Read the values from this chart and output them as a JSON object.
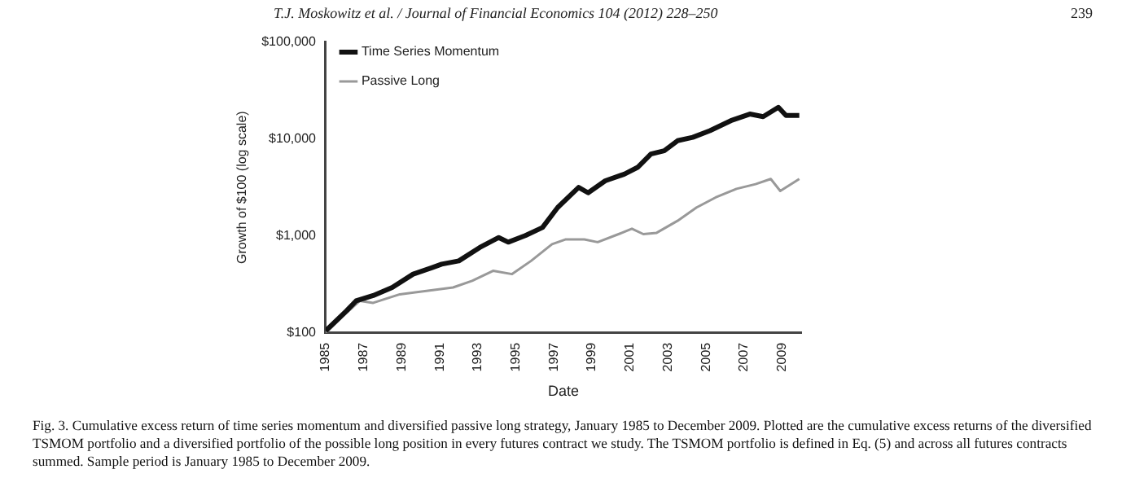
{
  "chart_data": {
    "type": "line",
    "xlabel": "Date",
    "ylabel": "Growth of $100 (log scale)",
    "annotations": [
      "T.J. Moskowitz et al. / Journal of Financial Economics 104 (2012) 228–250",
      "239",
      "Fig. 3. Cumulative excess return of time series momentum and diversified passive long strategy, January 1985 to December 2009. Plotted are the cumulative excess returns of the diversified TSMOM portfolio and a diversified portfolio of the possible long position in every futures contract we study. The TSMOM portfolio is defined in Eq. (5) and across all futures contracts summed. Sample period is January 1985 to December 2009."
    ],
    "series": [
      {
        "name": "Time Series Momentum",
        "color": "#111111",
        "x": [
          1985.0,
          1986.1,
          1986.6,
          1987.5,
          1988.5,
          1989.6,
          1990.6,
          1991.1,
          1992.0,
          1993.1,
          1994.1,
          1994.6,
          1995.5,
          1996.4,
          1997.2,
          1998.3,
          1998.8,
          1999.7,
          2000.7,
          2001.4,
          2002.1,
          2002.8,
          2003.5,
          2004.3,
          2005.2,
          2006.3,
          2007.3,
          2008.0,
          2008.8,
          2009.2,
          2009.9
        ],
        "values": [
          105,
          169,
          214,
          243,
          294,
          404,
          472,
          512,
          553,
          760,
          963,
          863,
          1010,
          1222,
          1967,
          3163,
          2786,
          3707,
          4342,
          5095,
          6987,
          7565,
          9600,
          10400,
          12170,
          15450,
          18080,
          17000,
          21200,
          17500,
          17500
        ]
      },
      {
        "name": "Passive Long",
        "color": "#999999",
        "x": [
          1985.0,
          1986.1,
          1986.8,
          1987.5,
          1988.9,
          1990.3,
          1991.7,
          1992.7,
          1993.8,
          1994.8,
          1995.8,
          1996.9,
          1997.6,
          1998.6,
          1999.3,
          2000.4,
          2001.1,
          2001.7,
          2002.4,
          2003.5,
          2004.5,
          2005.5,
          2006.6,
          2007.6,
          2008.4,
          2008.9,
          2009.9
        ],
        "values": [
          100,
          161,
          214,
          204,
          250,
          271,
          294,
          344,
          437,
          404,
          553,
          822,
          920,
          920,
          863,
          1044,
          1187,
          1044,
          1077,
          1432,
          1967,
          2494,
          3062,
          3422,
          3870,
          2910,
          3870
        ]
      }
    ],
    "xlim": [
      1985,
      2010
    ],
    "xticks": [
      1985,
      1987,
      1989,
      1991,
      1993,
      1995,
      1997,
      1999,
      2001,
      2003,
      2005,
      2007,
      2009
    ],
    "log": "y",
    "ylim": [
      100,
      100000
    ],
    "yticks": [
      {
        "value": 100,
        "label": "$100"
      },
      {
        "value": 1000,
        "label": "$1,000"
      },
      {
        "value": 10000,
        "label": "$10,000"
      },
      {
        "value": 100000,
        "label": "$100,000"
      }
    ],
    "grid": false,
    "legend": "top left",
    "marker": "none",
    "line_style": "solid"
  }
}
